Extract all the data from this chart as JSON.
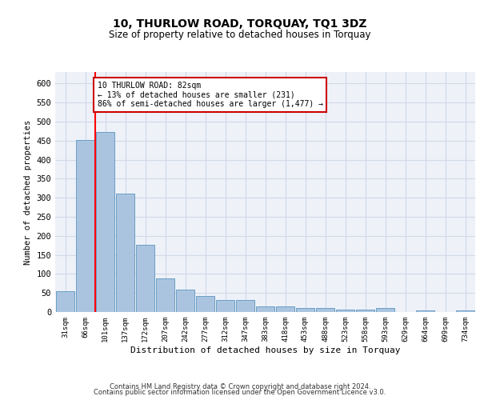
{
  "title": "10, THURLOW ROAD, TORQUAY, TQ1 3DZ",
  "subtitle": "Size of property relative to detached houses in Torquay",
  "xlabel": "Distribution of detached houses by size in Torquay",
  "ylabel": "Number of detached properties",
  "categories": [
    "31sqm",
    "66sqm",
    "101sqm",
    "137sqm",
    "172sqm",
    "207sqm",
    "242sqm",
    "277sqm",
    "312sqm",
    "347sqm",
    "383sqm",
    "418sqm",
    "453sqm",
    "488sqm",
    "523sqm",
    "558sqm",
    "593sqm",
    "629sqm",
    "664sqm",
    "699sqm",
    "734sqm"
  ],
  "values": [
    55,
    452,
    472,
    311,
    176,
    88,
    59,
    43,
    31,
    32,
    15,
    15,
    10,
    10,
    6,
    6,
    10,
    0,
    5,
    0,
    5
  ],
  "bar_color": "#aac4e0",
  "bar_edge_color": "#6a9ec5",
  "grid_color": "#d0d8e8",
  "background_color": "#eef2f8",
  "property_line_x": 1.5,
  "annotation_box_text": "10 THURLOW ROAD: 82sqm\n← 13% of detached houses are smaller (231)\n86% of semi-detached houses are larger (1,477) →",
  "annotation_box_color": "#ffffff",
  "annotation_box_edge_color": "#cc0000",
  "ylim": [
    0,
    630
  ],
  "yticks": [
    0,
    50,
    100,
    150,
    200,
    250,
    300,
    350,
    400,
    450,
    500,
    550,
    600
  ],
  "footer_line1": "Contains HM Land Registry data © Crown copyright and database right 2024.",
  "footer_line2": "Contains public sector information licensed under the Open Government Licence v3.0."
}
